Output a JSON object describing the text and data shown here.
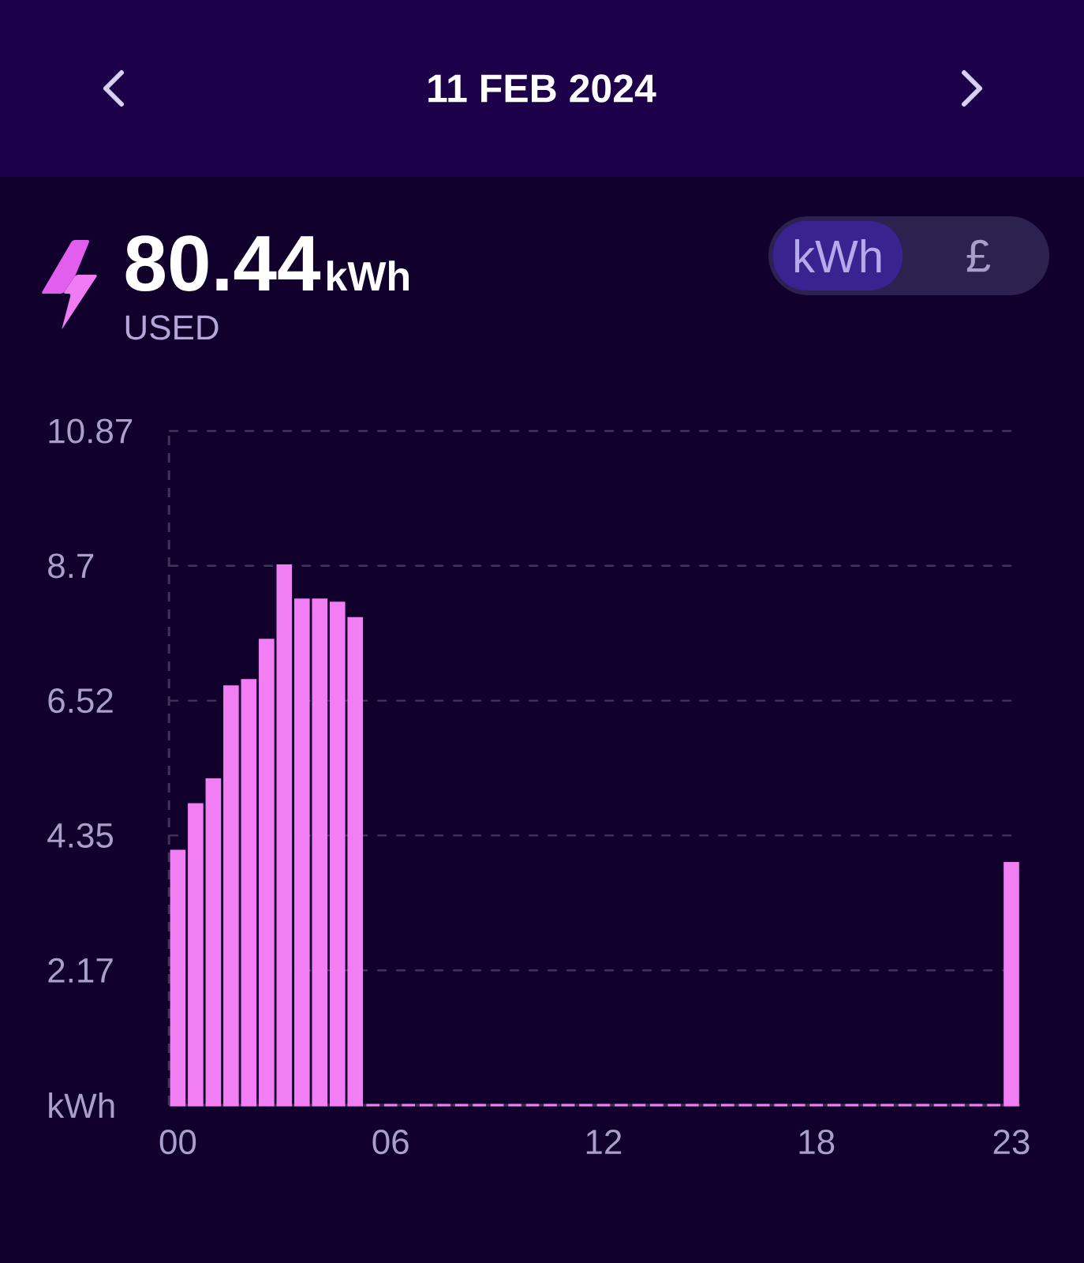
{
  "chart_data": {
    "type": "bar",
    "title": "11 FEB 2024",
    "annotations": [
      "80.44",
      "kWh",
      "USED",
      "kWh",
      "£"
    ],
    "categories": [
      "00",
      null,
      null,
      null,
      null,
      null,
      null,
      null,
      null,
      null,
      null,
      null,
      "06",
      null,
      null,
      null,
      null,
      null,
      null,
      null,
      null,
      null,
      null,
      null,
      "12",
      null,
      null,
      null,
      null,
      null,
      null,
      null,
      null,
      null,
      null,
      null,
      "18",
      null,
      null,
      null,
      null,
      null,
      null,
      null,
      null,
      null,
      null,
      "23"
    ],
    "values": [
      4.1,
      4.85,
      5.25,
      6.75,
      6.85,
      7.5,
      8.7,
      8.15,
      8.15,
      8.1,
      7.85,
      0,
      0,
      0,
      0,
      0,
      0,
      0,
      0,
      0,
      0,
      0,
      0,
      0,
      0,
      0,
      0,
      0,
      0,
      0,
      0,
      0,
      0,
      0,
      0,
      0,
      0,
      0,
      0,
      0,
      0,
      0,
      0,
      0,
      0,
      0,
      0,
      3.9
    ],
    "color": "#f27ef4",
    "ylim": [
      0,
      10.87
    ],
    "yticks": [
      {
        "value": 0,
        "label": "kWh"
      },
      {
        "value": 2.174,
        "label": "2.17"
      },
      {
        "value": 4.348,
        "label": "4.35"
      },
      {
        "value": 6.522,
        "label": "6.52"
      },
      {
        "value": 8.696,
        "label": "8.7"
      },
      10.87
    ],
    "grid": "y"
  }
}
